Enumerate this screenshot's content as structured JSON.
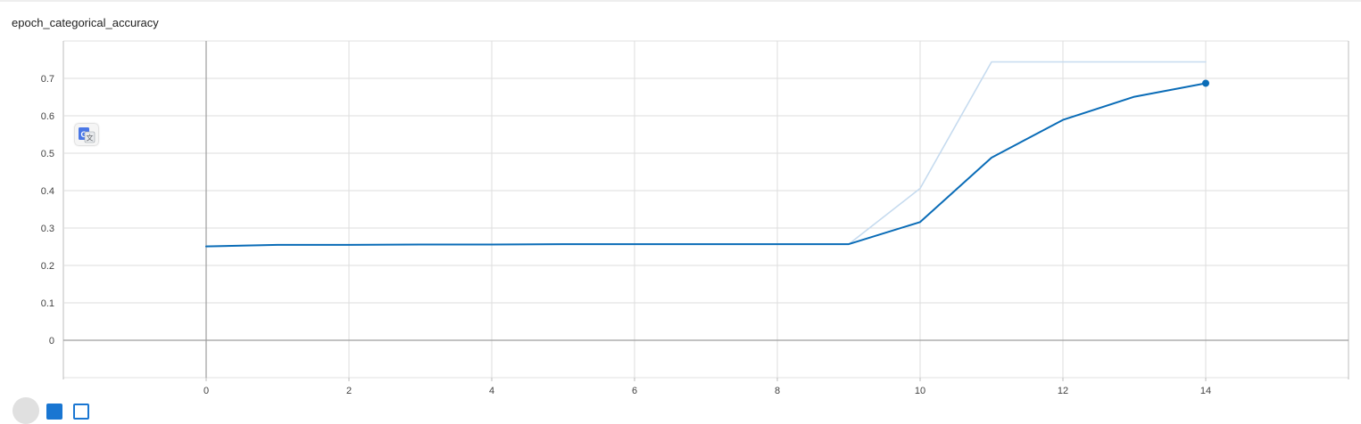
{
  "card": {
    "title": "epoch_categorical_accuracy"
  },
  "chart_data": {
    "type": "line",
    "title": "epoch_categorical_accuracy",
    "xlabel": "",
    "ylabel": "",
    "xlim": [
      -2,
      16
    ],
    "ylim": [
      -0.1,
      0.8
    ],
    "x_ticks": [
      0,
      2,
      4,
      6,
      8,
      10,
      12,
      14
    ],
    "y_ticks": [
      0,
      0.1,
      0.2,
      0.3,
      0.4,
      0.5,
      0.6,
      0.7
    ],
    "x_tick_labels": [
      "0",
      "2",
      "4",
      "6",
      "8",
      "10",
      "12",
      "14"
    ],
    "y_tick_labels": [
      "0",
      "0.1",
      "0.2",
      "0.3",
      "0.4",
      "0.5",
      "0.6",
      "0.7"
    ],
    "x_minor_ticks": [
      -1,
      1,
      3,
      5,
      7,
      9,
      11,
      13,
      15
    ],
    "grid": true,
    "series": [
      {
        "role": "raw",
        "color": "#c6dbef",
        "x": [
          0,
          1,
          2,
          3,
          4,
          5,
          6,
          7,
          8,
          9,
          10,
          11,
          12,
          13,
          14
        ],
        "y": [
          0.251,
          0.255,
          0.255,
          0.256,
          0.256,
          0.257,
          0.257,
          0.257,
          0.257,
          0.257,
          0.406,
          0.744,
          0.744,
          0.744,
          0.744
        ]
      },
      {
        "role": "smoothed",
        "color": "#0a6cb7",
        "x": [
          0,
          1,
          2,
          3,
          4,
          5,
          6,
          7,
          8,
          9,
          10,
          11,
          12,
          13,
          14
        ],
        "y": [
          0.251,
          0.255,
          0.255,
          0.256,
          0.256,
          0.257,
          0.257,
          0.257,
          0.257,
          0.257,
          0.316,
          0.488,
          0.589,
          0.651,
          0.687
        ]
      }
    ],
    "last_point_marker": true
  },
  "icons": {
    "translate": "google-translate-icon"
  }
}
